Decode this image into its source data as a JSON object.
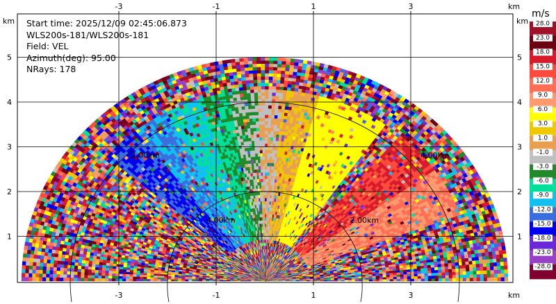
{
  "info": {
    "start_time": "Start time: 2025/12/09 02:45:06.873",
    "station": "WLS200s-181/WLS200s-181",
    "field": "Field: VEL",
    "azimuth": "Azimuth(deg): 95.00",
    "nrays": "NRays: 178"
  },
  "chart_data": {
    "type": "heatmap",
    "subtype": "RHI radar scan (range-height indicator)",
    "field": "VEL",
    "x_unit_label": "km",
    "y_unit_label": "km",
    "x_ticks": [
      "-3",
      "-1",
      "1",
      "3"
    ],
    "x_tick_values": [
      -3,
      -1,
      1,
      3
    ],
    "y_ticks": [
      "1",
      "2",
      "3",
      "4",
      "5"
    ],
    "y_tick_values": [
      1,
      2,
      3,
      4,
      5
    ],
    "xlim": [
      -5.0,
      5.1
    ],
    "ylim": [
      0,
      6.0
    ],
    "max_range_km": 5.0,
    "range_rings_km": [
      2.0,
      4.0
    ],
    "ring_labels": [
      "2.00km",
      "4.00km",
      "2.00km",
      "4.00km"
    ],
    "grid": true,
    "colorbar": {
      "unit": "m/s",
      "ticks": [
        "28.0",
        "23.0",
        "18.0",
        "15.0",
        "12.0",
        "9.0",
        "6.0",
        "3.0",
        "1.0",
        "-1.0",
        "-3.0",
        "-6.0",
        "-9.0",
        "-12.0",
        "-15.0",
        "-18.0",
        "-23.0",
        "-28.0"
      ],
      "colors": [
        "#a01028",
        "#6b0012",
        "#d81a2a",
        "#ff4a3d",
        "#ff6e55",
        "#ff9a6e",
        "#ffff00",
        "#f0c800",
        "#e8a050",
        "#c0c0c0",
        "#208a2a",
        "#00e09a",
        "#10c0f0",
        "#3a6ee0",
        "#0000ee",
        "#6a28d8",
        "#9a40c8",
        "#800030"
      ]
    },
    "velocity_structure": [
      {
        "elevation_deg_range": [
          20,
          35
        ],
        "velocity_ms": 10.5,
        "description": "receding jet, right side"
      },
      {
        "elevation_deg_range": [
          35,
          50
        ],
        "velocity_ms": 16.5,
        "description": "strong receding, upper right"
      },
      {
        "elevation_deg_range": [
          55,
          75
        ],
        "velocity_ms": 6.0,
        "description": "yellow band"
      },
      {
        "elevation_deg_range": [
          75,
          85
        ],
        "velocity_ms": 2.0,
        "description": "orange band"
      },
      {
        "elevation_deg_range": [
          85,
          92
        ],
        "velocity_ms": 0.0,
        "description": "near-zero, vertical"
      },
      {
        "elevation_deg_range": [
          92,
          100
        ],
        "velocity_ms": -2.0,
        "description": "green band"
      },
      {
        "elevation_deg_range": [
          100,
          108
        ],
        "velocity_ms": -4.5,
        "description": "mint band"
      },
      {
        "elevation_deg_range": [
          108,
          118
        ],
        "velocity_ms": -7.5,
        "description": "cyan band"
      },
      {
        "elevation_deg_range": [
          118,
          128
        ],
        "velocity_ms": -10.5,
        "description": "light blue band"
      },
      {
        "elevation_deg_range": [
          128,
          140
        ],
        "velocity_ms": -13.5,
        "description": "blue approaching jet, upper left"
      }
    ]
  }
}
